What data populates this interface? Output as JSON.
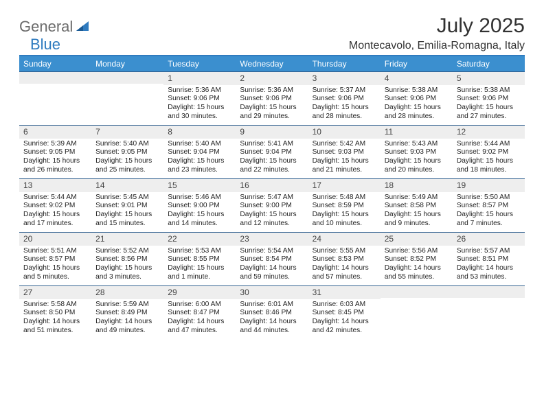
{
  "brand": {
    "part1": "General",
    "part2": "Blue"
  },
  "title": "July 2025",
  "location": "Montecavolo, Emilia-Romagna, Italy",
  "colors": {
    "header_bg": "#3b8fcf",
    "rule": "#2f7bbf",
    "daynum_bg": "#eeeeee",
    "logo_gray": "#6b6b6b",
    "logo_blue": "#2f7bbf"
  },
  "day_headers": [
    "Sunday",
    "Monday",
    "Tuesday",
    "Wednesday",
    "Thursday",
    "Friday",
    "Saturday"
  ],
  "weeks": [
    [
      {
        "n": "",
        "sr": "",
        "ss": "",
        "dl": ""
      },
      {
        "n": "",
        "sr": "",
        "ss": "",
        "dl": ""
      },
      {
        "n": "1",
        "sr": "5:36 AM",
        "ss": "9:06 PM",
        "dl": "15 hours and 30 minutes."
      },
      {
        "n": "2",
        "sr": "5:36 AM",
        "ss": "9:06 PM",
        "dl": "15 hours and 29 minutes."
      },
      {
        "n": "3",
        "sr": "5:37 AM",
        "ss": "9:06 PM",
        "dl": "15 hours and 28 minutes."
      },
      {
        "n": "4",
        "sr": "5:38 AM",
        "ss": "9:06 PM",
        "dl": "15 hours and 28 minutes."
      },
      {
        "n": "5",
        "sr": "5:38 AM",
        "ss": "9:06 PM",
        "dl": "15 hours and 27 minutes."
      }
    ],
    [
      {
        "n": "6",
        "sr": "5:39 AM",
        "ss": "9:05 PM",
        "dl": "15 hours and 26 minutes."
      },
      {
        "n": "7",
        "sr": "5:40 AM",
        "ss": "9:05 PM",
        "dl": "15 hours and 25 minutes."
      },
      {
        "n": "8",
        "sr": "5:40 AM",
        "ss": "9:04 PM",
        "dl": "15 hours and 23 minutes."
      },
      {
        "n": "9",
        "sr": "5:41 AM",
        "ss": "9:04 PM",
        "dl": "15 hours and 22 minutes."
      },
      {
        "n": "10",
        "sr": "5:42 AM",
        "ss": "9:03 PM",
        "dl": "15 hours and 21 minutes."
      },
      {
        "n": "11",
        "sr": "5:43 AM",
        "ss": "9:03 PM",
        "dl": "15 hours and 20 minutes."
      },
      {
        "n": "12",
        "sr": "5:44 AM",
        "ss": "9:02 PM",
        "dl": "15 hours and 18 minutes."
      }
    ],
    [
      {
        "n": "13",
        "sr": "5:44 AM",
        "ss": "9:02 PM",
        "dl": "15 hours and 17 minutes."
      },
      {
        "n": "14",
        "sr": "5:45 AM",
        "ss": "9:01 PM",
        "dl": "15 hours and 15 minutes."
      },
      {
        "n": "15",
        "sr": "5:46 AM",
        "ss": "9:00 PM",
        "dl": "15 hours and 14 minutes."
      },
      {
        "n": "16",
        "sr": "5:47 AM",
        "ss": "9:00 PM",
        "dl": "15 hours and 12 minutes."
      },
      {
        "n": "17",
        "sr": "5:48 AM",
        "ss": "8:59 PM",
        "dl": "15 hours and 10 minutes."
      },
      {
        "n": "18",
        "sr": "5:49 AM",
        "ss": "8:58 PM",
        "dl": "15 hours and 9 minutes."
      },
      {
        "n": "19",
        "sr": "5:50 AM",
        "ss": "8:57 PM",
        "dl": "15 hours and 7 minutes."
      }
    ],
    [
      {
        "n": "20",
        "sr": "5:51 AM",
        "ss": "8:57 PM",
        "dl": "15 hours and 5 minutes."
      },
      {
        "n": "21",
        "sr": "5:52 AM",
        "ss": "8:56 PM",
        "dl": "15 hours and 3 minutes."
      },
      {
        "n": "22",
        "sr": "5:53 AM",
        "ss": "8:55 PM",
        "dl": "15 hours and 1 minute."
      },
      {
        "n": "23",
        "sr": "5:54 AM",
        "ss": "8:54 PM",
        "dl": "14 hours and 59 minutes."
      },
      {
        "n": "24",
        "sr": "5:55 AM",
        "ss": "8:53 PM",
        "dl": "14 hours and 57 minutes."
      },
      {
        "n": "25",
        "sr": "5:56 AM",
        "ss": "8:52 PM",
        "dl": "14 hours and 55 minutes."
      },
      {
        "n": "26",
        "sr": "5:57 AM",
        "ss": "8:51 PM",
        "dl": "14 hours and 53 minutes."
      }
    ],
    [
      {
        "n": "27",
        "sr": "5:58 AM",
        "ss": "8:50 PM",
        "dl": "14 hours and 51 minutes."
      },
      {
        "n": "28",
        "sr": "5:59 AM",
        "ss": "8:49 PM",
        "dl": "14 hours and 49 minutes."
      },
      {
        "n": "29",
        "sr": "6:00 AM",
        "ss": "8:47 PM",
        "dl": "14 hours and 47 minutes."
      },
      {
        "n": "30",
        "sr": "6:01 AM",
        "ss": "8:46 PM",
        "dl": "14 hours and 44 minutes."
      },
      {
        "n": "31",
        "sr": "6:03 AM",
        "ss": "8:45 PM",
        "dl": "14 hours and 42 minutes."
      },
      {
        "n": "",
        "sr": "",
        "ss": "",
        "dl": ""
      },
      {
        "n": "",
        "sr": "",
        "ss": "",
        "dl": ""
      }
    ]
  ],
  "labels": {
    "sunrise": "Sunrise:",
    "sunset": "Sunset:",
    "daylight": "Daylight:"
  }
}
